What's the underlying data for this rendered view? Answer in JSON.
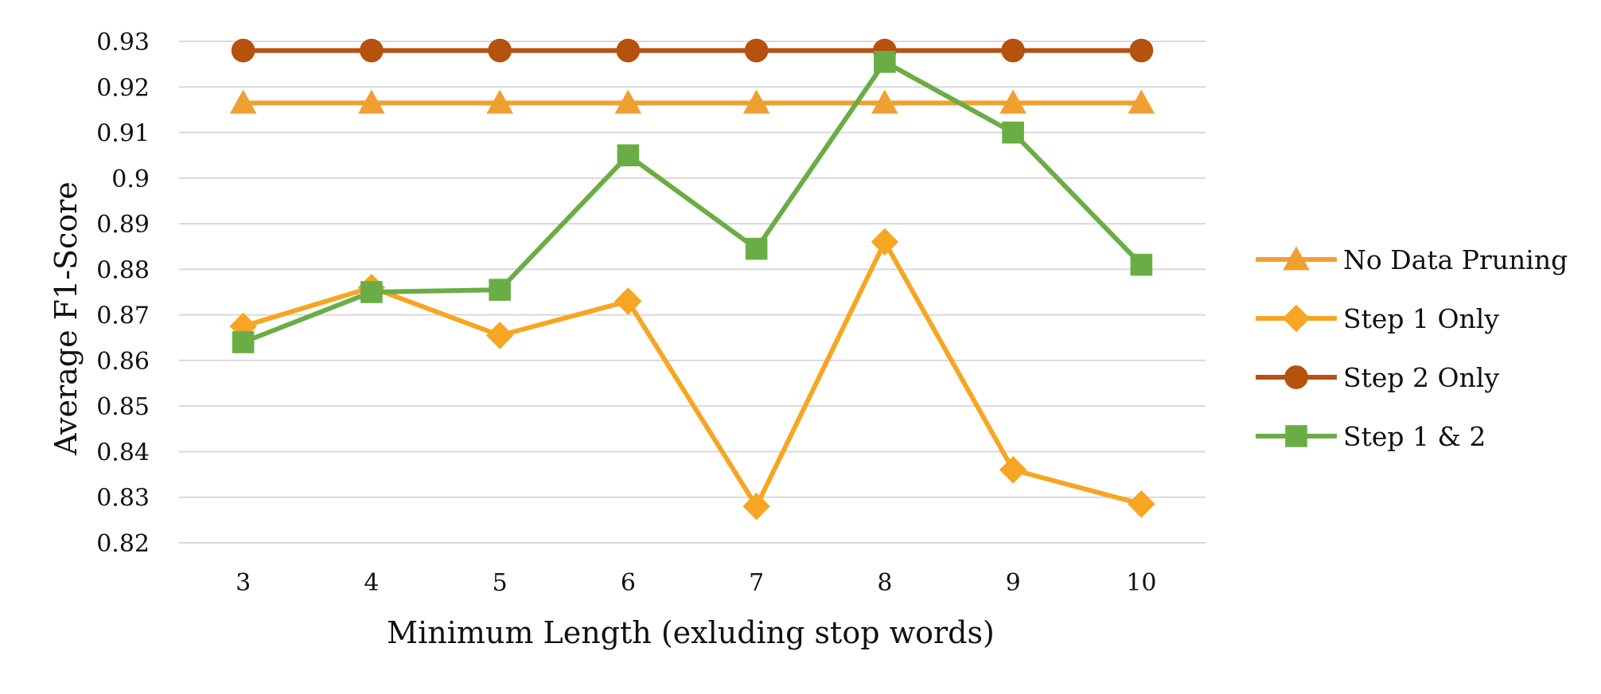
{
  "chart_data": {
    "type": "line",
    "title": "",
    "xlabel": "Minimum Length (exluding stop words)",
    "ylabel": "Average  F1-Score",
    "categories": [
      "3",
      "4",
      "5",
      "6",
      "7",
      "8",
      "9",
      "10"
    ],
    "ylim": [
      0.82,
      0.93
    ],
    "yticks": [
      "0.82",
      "0.83",
      "0.84",
      "0.85",
      "0.86",
      "0.87",
      "0.88",
      "0.89",
      "0.9",
      "0.91",
      "0.92",
      "0.93"
    ],
    "grid": true,
    "legend_position": "right",
    "series": [
      {
        "name": "No Data Pruning",
        "color": "#f0a030",
        "marker": "triangle",
        "values": [
          0.9165,
          0.9165,
          0.9165,
          0.9165,
          0.9165,
          0.9165,
          0.9165,
          0.9165
        ]
      },
      {
        "name": "Step 1 Only",
        "color": "#f6a623",
        "marker": "diamond",
        "values": [
          0.8675,
          0.876,
          0.8655,
          0.873,
          0.828,
          0.886,
          0.836,
          0.8285
        ]
      },
      {
        "name": "Step 2 Only",
        "color": "#b5520e",
        "marker": "circle",
        "values": [
          0.928,
          0.928,
          0.928,
          0.928,
          0.928,
          0.928,
          0.928,
          0.928
        ]
      },
      {
        "name": "Step 1 & 2",
        "color": "#6aad45",
        "marker": "square",
        "values": [
          0.864,
          0.875,
          0.8755,
          0.905,
          0.8845,
          0.9255,
          0.91,
          0.881
        ]
      }
    ]
  }
}
